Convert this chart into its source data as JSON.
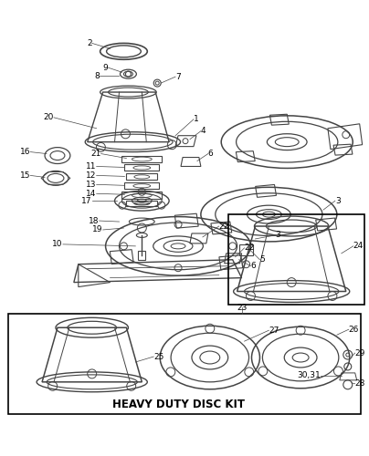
{
  "title": "HEAVY DUTY DISC KIT",
  "background_color": "#ffffff",
  "line_color": "#444444",
  "text_color": "#000000",
  "fig_width": 4.04,
  "fig_height": 5.0,
  "dpi": 100
}
